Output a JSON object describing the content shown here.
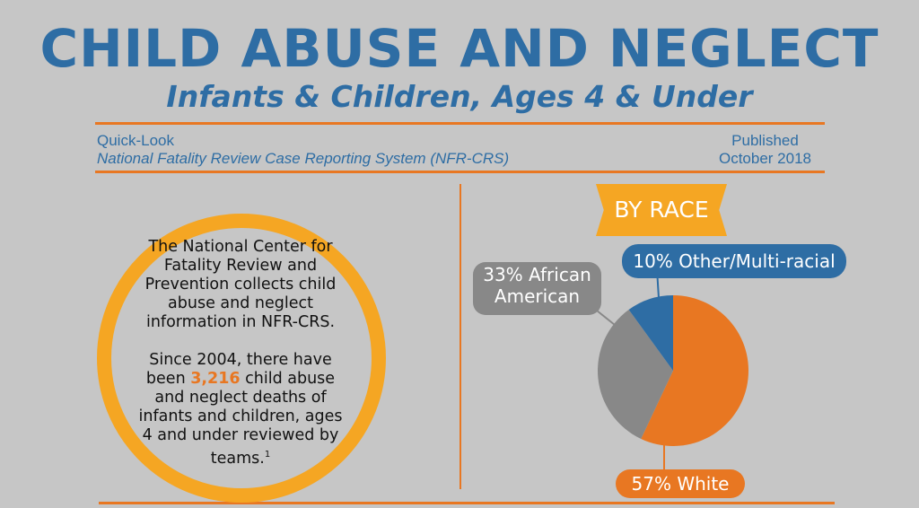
{
  "header": {
    "title": "CHILD ABUSE AND NEGLECT",
    "subtitle": "Infants & Children, Ages 4 & Under"
  },
  "meta": {
    "left_line1": "Quick-Look",
    "left_line2": "National Fatality Review Case Reporting System (NFR-CRS)",
    "right_line1": "Published",
    "right_line2": "October 2018"
  },
  "circle": {
    "p1": "The National Center for Fatality Review and Prevention collects child abuse and neglect information in NFR-CRS.",
    "p2_before": "Since 2004, there have been ",
    "p2_highlight": "3,216",
    "p2_after": " child abuse and neglect deaths of infants and children, ages 4 and under reviewed by teams.",
    "footnote": "1"
  },
  "colors": {
    "blue": "#2e6da4",
    "orange": "#e87722",
    "yellow": "#f5a623",
    "gray": "#888888",
    "background": "#c6c6c6"
  },
  "chart_data": {
    "type": "pie",
    "title": "BY RACE",
    "slices": [
      {
        "label": "57% White",
        "category": "White",
        "value": 57,
        "color": "#e87722"
      },
      {
        "label": "33% African American",
        "category": "African American",
        "value": 33,
        "color": "#888888"
      },
      {
        "label": "10% Other/Multi-racial",
        "category": "Other/Multi-racial",
        "value": 10,
        "color": "#2e6da4"
      }
    ]
  }
}
